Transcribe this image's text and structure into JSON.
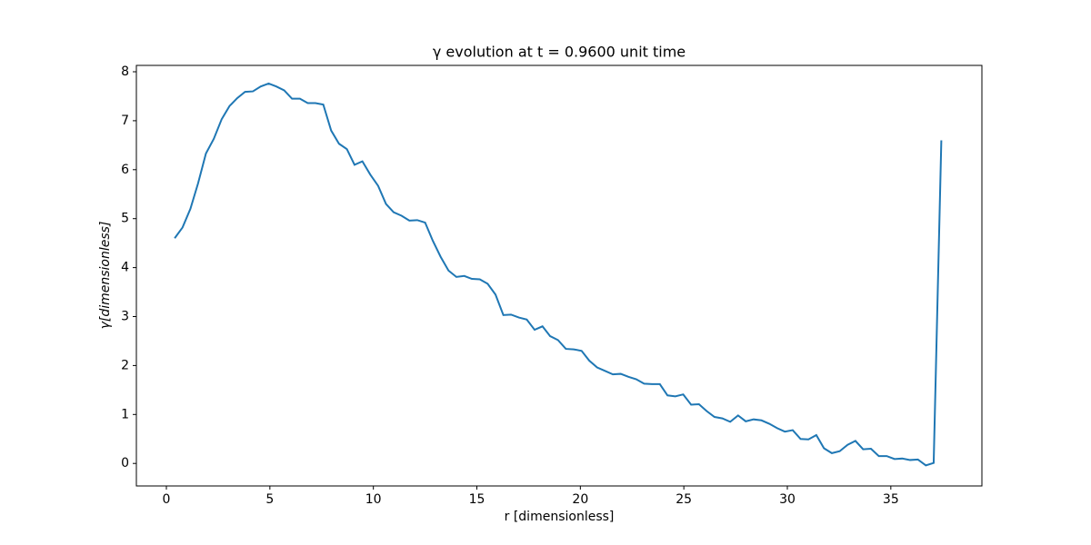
{
  "chart_data": {
    "type": "line",
    "title": "γ evolution at t = 0.9600 unit time",
    "xlabel": "r [dimensionless]",
    "ylabel": "γ[dimensionless]",
    "x": [
      0.4,
      0.78,
      1.16,
      1.53,
      1.91,
      2.29,
      2.67,
      3.05,
      3.42,
      3.8,
      4.18,
      4.56,
      4.94,
      5.31,
      5.69,
      6.07,
      6.45,
      6.83,
      7.2,
      7.58,
      7.96,
      8.34,
      8.72,
      9.09,
      9.47,
      9.85,
      10.23,
      10.61,
      10.98,
      11.36,
      11.74,
      12.12,
      12.5,
      12.87,
      13.25,
      13.63,
      14.01,
      14.39,
      14.76,
      15.14,
      15.52,
      15.9,
      16.28,
      16.65,
      17.03,
      17.41,
      17.79,
      18.17,
      18.54,
      18.92,
      19.3,
      19.68,
      20.06,
      20.43,
      20.81,
      21.19,
      21.57,
      21.95,
      22.32,
      22.7,
      23.08,
      23.46,
      23.84,
      24.21,
      24.59,
      24.97,
      25.35,
      25.73,
      26.1,
      26.48,
      26.86,
      27.24,
      27.62,
      27.99,
      28.37,
      28.75,
      29.13,
      29.51,
      29.88,
      30.26,
      30.64,
      31.02,
      31.4,
      31.77,
      32.15,
      32.53,
      32.91,
      33.29,
      33.66,
      34.04,
      34.42,
      34.8,
      35.18,
      35.55,
      35.93,
      36.31,
      36.69,
      37.07,
      37.44
    ],
    "series": [
      {
        "name": "γ",
        "color": "#1f77b4",
        "values": [
          4.6,
          4.82,
          5.2,
          5.72,
          6.33,
          6.63,
          7.03,
          7.3,
          7.46,
          7.59,
          7.6,
          7.7,
          7.76,
          7.7,
          7.62,
          7.45,
          7.45,
          7.36,
          7.36,
          7.33,
          6.8,
          6.53,
          6.42,
          6.1,
          6.17,
          5.9,
          5.67,
          5.3,
          5.13,
          5.06,
          4.96,
          4.97,
          4.92,
          4.55,
          4.22,
          3.94,
          3.81,
          3.83,
          3.77,
          3.76,
          3.67,
          3.45,
          3.03,
          3.04,
          2.98,
          2.94,
          2.73,
          2.8,
          2.6,
          2.52,
          2.34,
          2.33,
          2.3,
          2.1,
          1.96,
          1.89,
          1.82,
          1.83,
          1.77,
          1.72,
          1.63,
          1.62,
          1.62,
          1.39,
          1.37,
          1.41,
          1.2,
          1.21,
          1.07,
          0.95,
          0.92,
          0.85,
          0.98,
          0.86,
          0.9,
          0.88,
          0.81,
          0.72,
          0.65,
          0.68,
          0.5,
          0.49,
          0.58,
          0.31,
          0.21,
          0.25,
          0.38,
          0.46,
          0.29,
          0.3,
          0.15,
          0.15,
          0.09,
          0.1,
          0.07,
          0.08,
          -0.04,
          0.01,
          6.6
        ]
      }
    ],
    "xlim": [
      -1.45,
      39.4
    ],
    "ylim": [
      -0.46,
      8.13
    ],
    "xticks": [
      0,
      5,
      10,
      15,
      20,
      25,
      30,
      35
    ],
    "yticks": [
      0,
      1,
      2,
      3,
      4,
      5,
      6,
      7,
      8
    ],
    "grid": false
  }
}
